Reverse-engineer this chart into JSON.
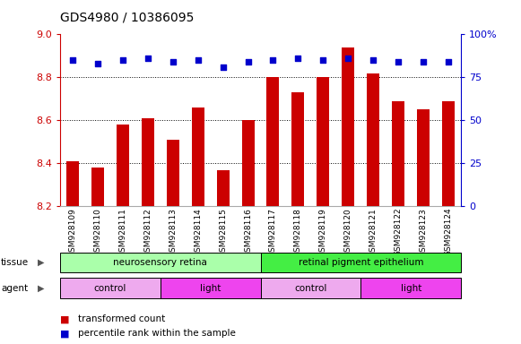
{
  "title": "GDS4980 / 10386095",
  "samples": [
    "GSM928109",
    "GSM928110",
    "GSM928111",
    "GSM928112",
    "GSM928113",
    "GSM928114",
    "GSM928115",
    "GSM928116",
    "GSM928117",
    "GSM928118",
    "GSM928119",
    "GSM928120",
    "GSM928121",
    "GSM928122",
    "GSM928123",
    "GSM928124"
  ],
  "bar_values": [
    8.41,
    8.38,
    8.58,
    8.61,
    8.51,
    8.66,
    8.37,
    8.6,
    8.8,
    8.73,
    8.8,
    8.94,
    8.82,
    8.69,
    8.65,
    8.69
  ],
  "dot_values": [
    85,
    83,
    85,
    86,
    84,
    85,
    81,
    84,
    85,
    86,
    85,
    86,
    85,
    84,
    84,
    84
  ],
  "bar_color": "#cc0000",
  "dot_color": "#0000cc",
  "ylim_left": [
    8.2,
    9.0
  ],
  "ylim_right": [
    0,
    100
  ],
  "yticks_left": [
    8.2,
    8.4,
    8.6,
    8.8,
    9.0
  ],
  "yticks_right": [
    0,
    25,
    50,
    75,
    100
  ],
  "grid_values": [
    8.4,
    8.6,
    8.8
  ],
  "tissue_groups": [
    {
      "label": "neurosensory retina",
      "start": 0,
      "end": 7,
      "color": "#aaffaa"
    },
    {
      "label": "retinal pigment epithelium",
      "start": 8,
      "end": 15,
      "color": "#44ee44"
    }
  ],
  "agent_groups": [
    {
      "label": "control",
      "start": 0,
      "end": 3,
      "color": "#eeaaee"
    },
    {
      "label": "light",
      "start": 4,
      "end": 7,
      "color": "#ee44ee"
    },
    {
      "label": "control",
      "start": 8,
      "end": 11,
      "color": "#eeaaee"
    },
    {
      "label": "light",
      "start": 12,
      "end": 15,
      "color": "#ee44ee"
    }
  ],
  "bar_bottom": 8.2,
  "bar_width": 0.5
}
